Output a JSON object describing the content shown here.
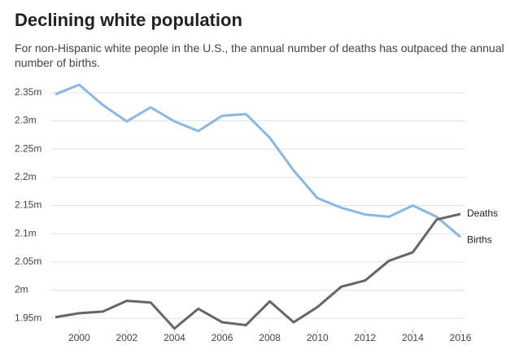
{
  "chart_data": {
    "type": "line",
    "title": "Declining white population",
    "subtitle": "For non-Hispanic white people in the U.S., the annual number of deaths has outpaced the annual number of births.",
    "x": [
      1999,
      2000,
      2001,
      2002,
      2003,
      2004,
      2005,
      2006,
      2007,
      2008,
      2009,
      2010,
      2011,
      2012,
      2013,
      2014,
      2015,
      2016
    ],
    "series": [
      {
        "name": "Births",
        "color": "#86b9e3",
        "values": [
          2.347,
          2.364,
          2.328,
          2.299,
          2.324,
          2.299,
          2.282,
          2.309,
          2.312,
          2.27,
          2.212,
          2.163,
          2.146,
          2.134,
          2.13,
          2.15,
          2.13,
          2.094
        ]
      },
      {
        "name": "Deaths",
        "color": "#666666",
        "values": [
          1.952,
          1.959,
          1.962,
          1.981,
          1.978,
          1.932,
          1.967,
          1.943,
          1.938,
          1.98,
          1.943,
          1.97,
          2.006,
          2.017,
          2.052,
          2.067,
          2.125,
          2.135
        ]
      }
    ],
    "xlim": [
      1999,
      2016
    ],
    "xticks": [
      2000,
      2002,
      2004,
      2006,
      2008,
      2010,
      2012,
      2014,
      2016
    ],
    "ylim": [
      1.93,
      2.37
    ],
    "yticks": [
      {
        "value": 1.95,
        "label": "1.95m"
      },
      {
        "value": 2,
        "label": "2m"
      },
      {
        "value": 2.05,
        "label": "2.05m"
      },
      {
        "value": 2.1,
        "label": "2.1m"
      },
      {
        "value": 2.15,
        "label": "2.15m"
      },
      {
        "value": 2.2,
        "label": "2.2m"
      },
      {
        "value": 2.25,
        "label": "2.25m"
      },
      {
        "value": 2.3,
        "label": "2.3m"
      },
      {
        "value": 2.35,
        "label": "2.35m"
      }
    ],
    "grid": true
  }
}
